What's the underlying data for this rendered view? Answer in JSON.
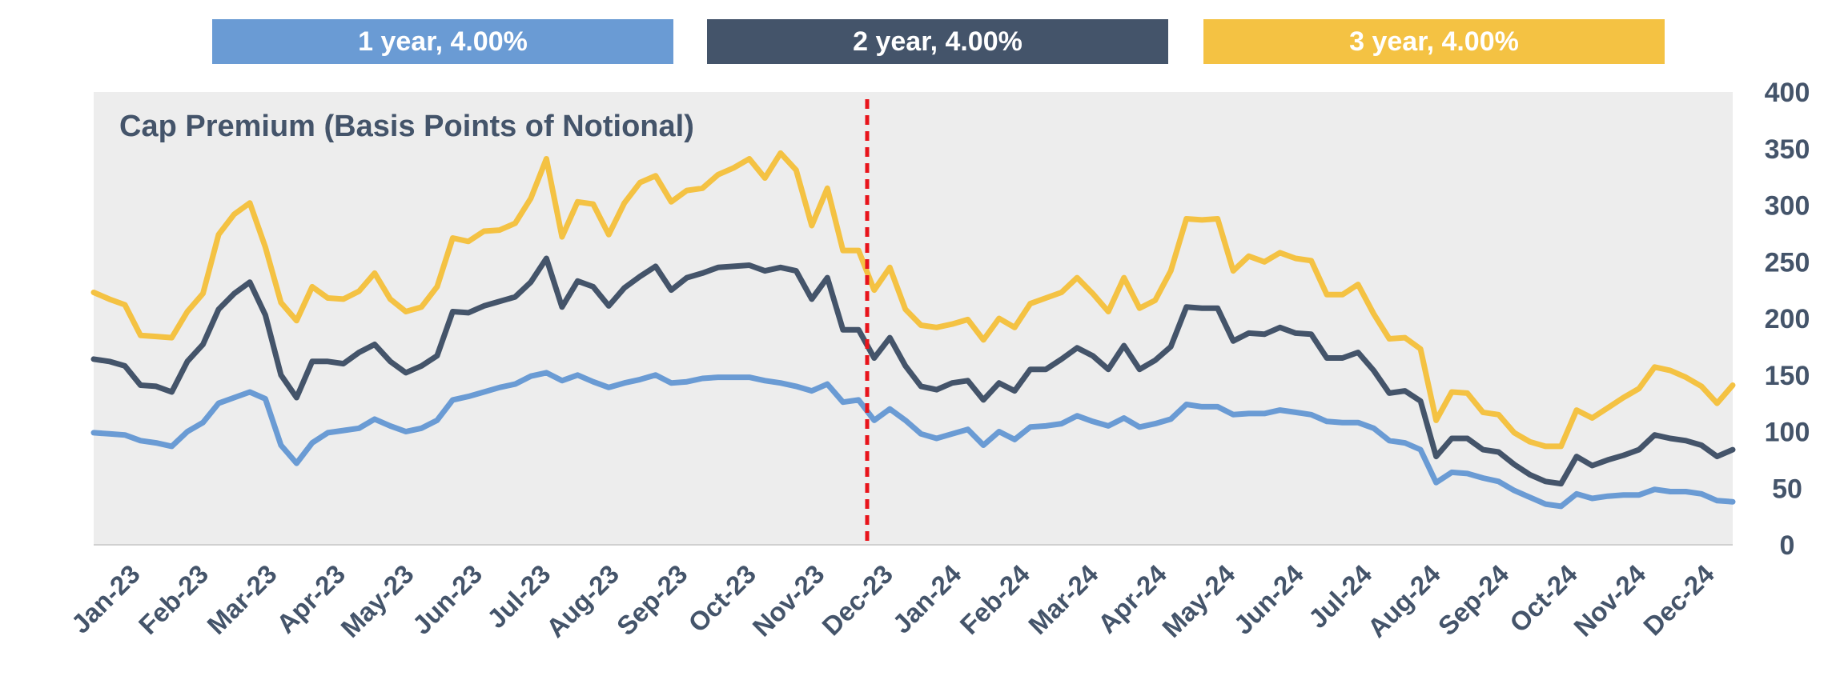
{
  "chart_data": {
    "type": "line",
    "title": "Cap Premium (Basis Points of Notional)",
    "ylim": [
      0,
      400
    ],
    "yticks": [
      0,
      50,
      100,
      150,
      200,
      250,
      300,
      350,
      400
    ],
    "y_axis_side": "right",
    "grid": false,
    "legend_position": "top",
    "x_tick_labels": [
      "Jan-23",
      "Feb-23",
      "Mar-23",
      "Apr-23",
      "May-23",
      "Jun-23",
      "Jul-23",
      "Aug-23",
      "Sep-23",
      "Oct-23",
      "Nov-23",
      "Dec-23",
      "Jan-24",
      "Feb-24",
      "Mar-24",
      "Apr-24",
      "May-24",
      "Jun-24",
      "Jul-24",
      "Aug-24",
      "Sep-24",
      "Oct-24",
      "Nov-24",
      "Dec-24"
    ],
    "marker_line": {
      "label": "",
      "x": "Dec-23",
      "color": "#e8141b",
      "style": "dashed"
    },
    "series": [
      {
        "name": "1 year, 4.00%",
        "color": "#6a9bd4",
        "values": [
          99,
          98,
          97,
          92,
          90,
          87,
          100,
          108,
          125,
          130,
          135,
          129,
          88,
          72,
          90,
          99,
          101,
          103,
          111,
          105,
          100,
          103,
          110,
          128,
          131,
          135,
          139,
          142,
          149,
          152,
          145,
          150,
          144,
          139,
          143,
          146,
          150,
          143,
          144,
          147,
          148,
          148,
          148,
          145,
          143,
          140,
          136,
          142,
          126,
          128,
          110,
          120,
          110,
          98,
          94,
          98,
          102,
          88,
          100,
          93,
          104,
          105,
          107,
          114,
          109,
          105,
          112,
          104,
          107,
          111,
          124,
          122,
          122,
          115,
          116,
          116,
          119,
          117,
          115,
          109,
          108,
          108,
          103,
          92,
          90,
          84,
          55,
          64,
          63,
          59,
          56,
          48,
          42,
          36,
          34,
          45,
          41,
          43,
          44,
          44,
          49,
          47,
          47,
          45,
          39,
          38
        ]
      },
      {
        "name": "2 year, 4.00%",
        "color": "#44546a",
        "values": [
          164,
          162,
          158,
          141,
          140,
          135,
          162,
          177,
          208,
          222,
          232,
          203,
          150,
          130,
          162,
          162,
          160,
          170,
          177,
          162,
          152,
          158,
          167,
          206,
          205,
          211,
          215,
          219,
          232,
          253,
          210,
          233,
          228,
          211,
          227,
          237,
          246,
          225,
          236,
          240,
          245,
          246,
          247,
          242,
          245,
          242,
          217,
          236,
          190,
          190,
          165,
          183,
          158,
          140,
          137,
          143,
          145,
          128,
          143,
          136,
          155,
          155,
          164,
          174,
          167,
          155,
          176,
          155,
          163,
          175,
          210,
          209,
          209,
          180,
          187,
          186,
          192,
          187,
          186,
          165,
          165,
          170,
          154,
          134,
          136,
          127,
          78,
          94,
          94,
          84,
          82,
          71,
          62,
          56,
          54,
          78,
          70,
          75,
          79,
          84,
          97,
          94,
          92,
          88,
          78,
          84
        ]
      },
      {
        "name": "3 year, 4.00%",
        "color": "#f4c243",
        "values": [
          223,
          217,
          212,
          185,
          184,
          183,
          206,
          222,
          274,
          292,
          302,
          263,
          214,
          198,
          228,
          218,
          217,
          224,
          240,
          217,
          206,
          210,
          228,
          271,
          268,
          277,
          278,
          284,
          306,
          341,
          272,
          303,
          301,
          274,
          302,
          320,
          326,
          303,
          313,
          315,
          327,
          333,
          341,
          324,
          346,
          331,
          282,
          315,
          260,
          260,
          225,
          245,
          208,
          194,
          192,
          195,
          199,
          181,
          200,
          192,
          213,
          218,
          223,
          236,
          222,
          206,
          236,
          209,
          216,
          242,
          288,
          287,
          288,
          242,
          255,
          250,
          258,
          253,
          251,
          221,
          221,
          230,
          204,
          182,
          183,
          173,
          110,
          135,
          134,
          117,
          115,
          99,
          91,
          87,
          87,
          119,
          112,
          121,
          130,
          138,
          157,
          154,
          148,
          140,
          125,
          141
        ]
      }
    ]
  }
}
